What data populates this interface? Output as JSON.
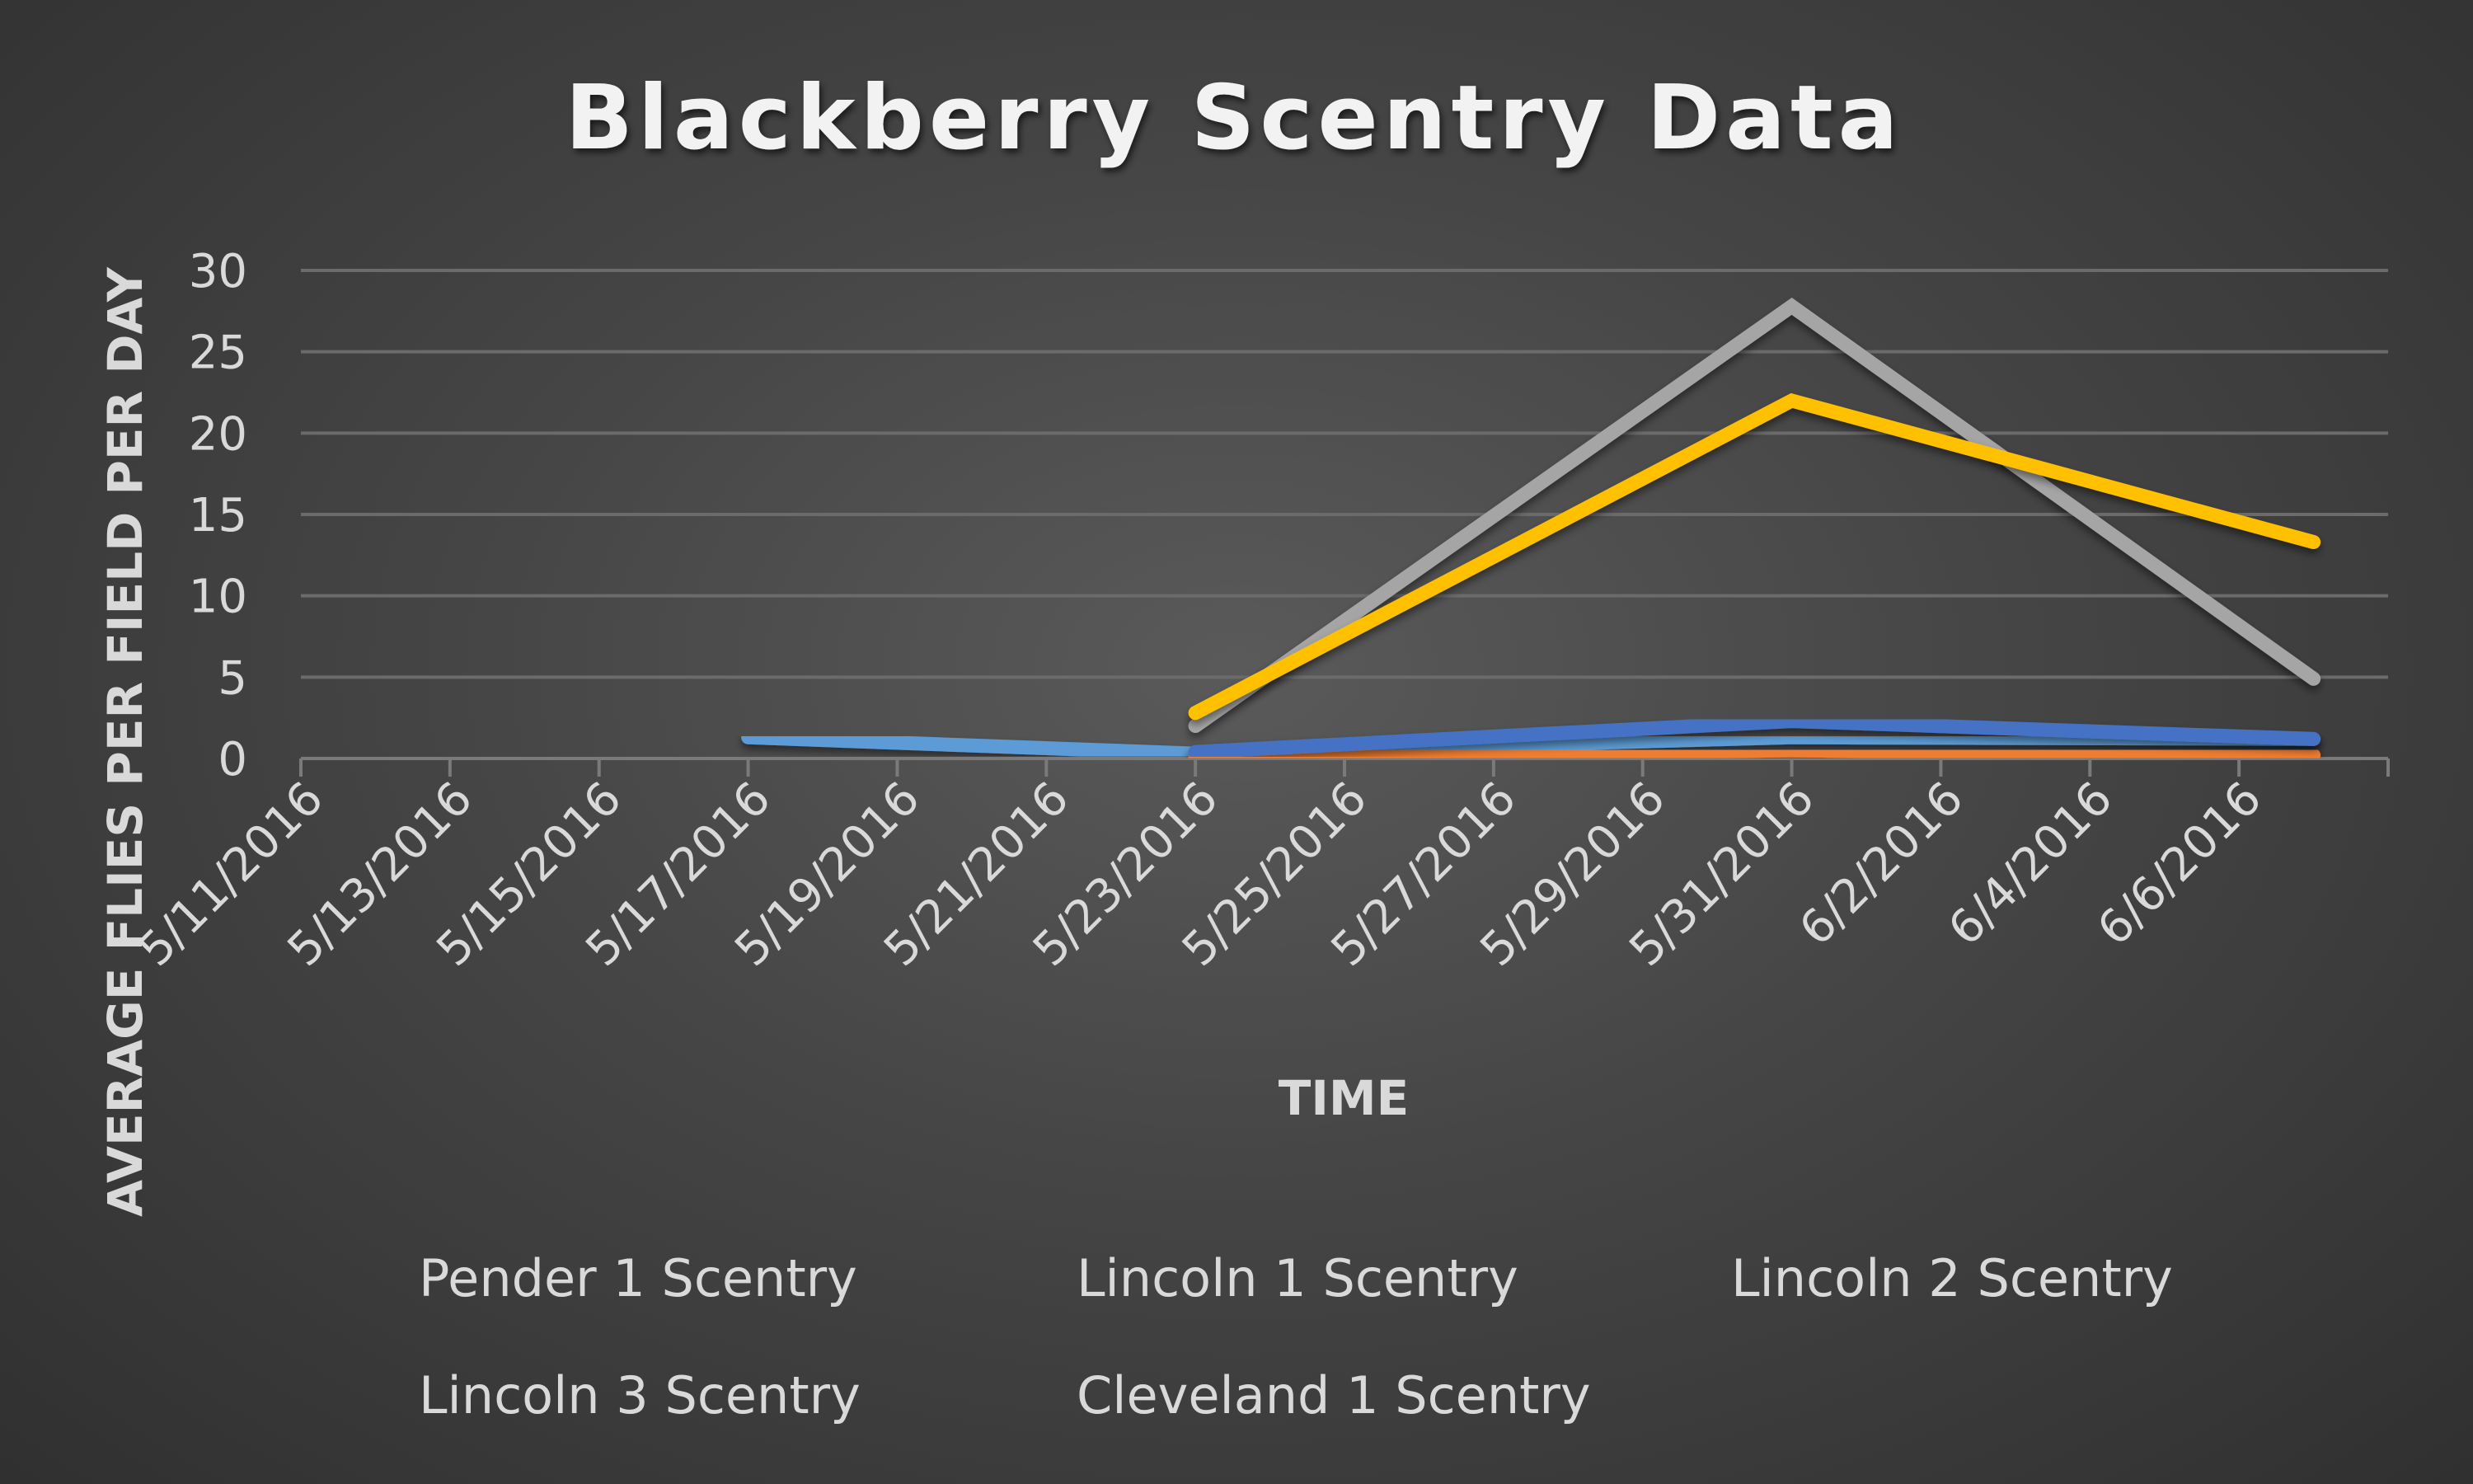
{
  "chart_data": {
    "type": "line",
    "title": "Blackberry Scentry Data",
    "xlabel": "TIME",
    "ylabel": "AVERAGE FLIES PER FIELD PER DAY",
    "ylim": [
      0,
      30
    ],
    "yticks": [
      "0",
      "5",
      "10",
      "15",
      "20",
      "25",
      "30"
    ],
    "x_tick_labels": [
      "5/11/2016",
      "5/13/2016",
      "5/15/2016",
      "5/17/2016",
      "5/19/2016",
      "5/21/2016",
      "5/23/2016",
      "5/25/2016",
      "5/27/2016",
      "5/29/2016",
      "5/31/2016",
      "6/2/2016",
      "6/4/2016",
      "6/6/2016"
    ],
    "x_range": [
      "5/11/2016",
      "6/8/2016"
    ],
    "grid": true,
    "legend_position": "bottom",
    "series": [
      {
        "name": "Pender 1 Scentry",
        "color": "#5b9bd5",
        "points": [
          [
            "5/17/2016",
            1.3
          ],
          [
            "5/23/2016",
            0.3
          ],
          [
            "5/31/2016",
            1.3
          ],
          [
            "6/7/2016",
            1.2
          ]
        ]
      },
      {
        "name": "Lincoln 1 Scentry",
        "color": "#ed7d31",
        "points": [
          [
            "5/23/2016",
            0.1
          ],
          [
            "5/31/2016",
            0.5
          ],
          [
            "6/7/2016",
            0.2
          ]
        ]
      },
      {
        "name": "Lincoln 2 Scentry",
        "color": "#a5a5a5",
        "points": [
          [
            "5/23/2016",
            2.0
          ],
          [
            "5/31/2016",
            27.8
          ],
          [
            "6/7/2016",
            4.9
          ]
        ]
      },
      {
        "name": "Lincoln 3 Scentry",
        "color": "#ffc000",
        "points": [
          [
            "5/23/2016",
            2.8
          ],
          [
            "5/31/2016",
            22.0
          ],
          [
            "6/7/2016",
            13.3
          ]
        ]
      },
      {
        "name": "Cleveland 1 Scentry",
        "color": "#4472c4",
        "points": [
          [
            "5/23/2016",
            0.4
          ],
          [
            "5/31/2016",
            2.3
          ],
          [
            "6/7/2016",
            1.2
          ]
        ]
      }
    ]
  }
}
